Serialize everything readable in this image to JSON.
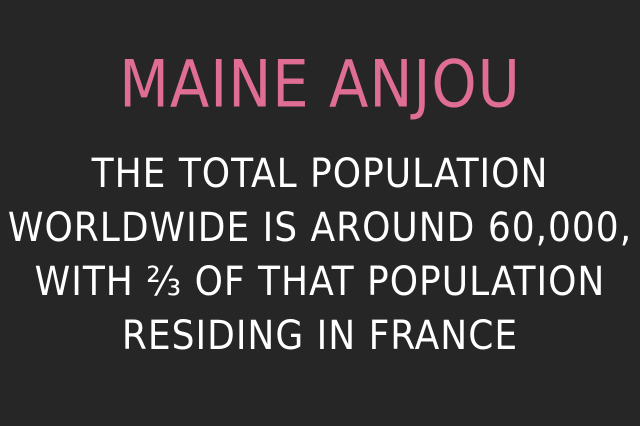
{
  "title": "MAINE ANJOU",
  "lines": [
    "THE TOTAL POPULATION",
    "WORLDWIDE IS AROUND 60,000,",
    "WITH ⅔ OF THAT POPULATION",
    "RESIDING IN FRANCE"
  ],
  "colors": {
    "background": "#262626",
    "title": "#df6d94",
    "body": "#ffffff"
  }
}
